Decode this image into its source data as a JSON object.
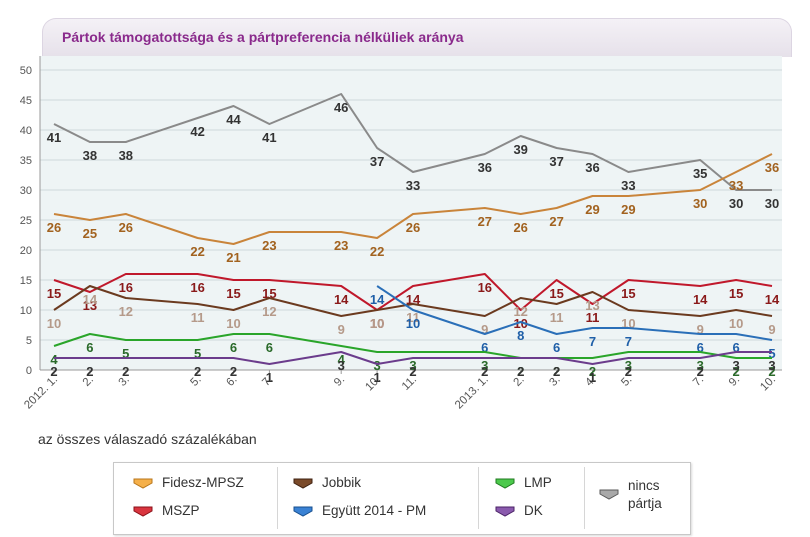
{
  "title": "Pártok támogatottsága és a pártpreferencia nélküliek aránya",
  "note": "az összes válaszadó százalékában",
  "legend": [
    {
      "name": "Fidesz-MPSZ",
      "color": "#f5a623"
    },
    {
      "name": "MSZP",
      "color": "#c8102e"
    },
    {
      "name": "Jobbik",
      "color": "#6b3a1f"
    },
    {
      "name": "Együtt 2014 - PM",
      "color": "#1f6fc2"
    },
    {
      "name": "LMP",
      "color": "#2fb52f"
    },
    {
      "name": "DK",
      "color": "#6b3c8c"
    },
    {
      "name": "nincs pártja",
      "color": "#888888"
    }
  ],
  "chart_data": {
    "type": "line",
    "title": "Pártok támogatottsága és a pártpreferencia nélküliek aránya",
    "ylabel": "az összes válaszadó százalékában",
    "ylim": [
      0,
      50
    ],
    "yticks": [
      0,
      5,
      10,
      15,
      20,
      25,
      30,
      35,
      40,
      45,
      50
    ],
    "x_labels": [
      "2012. 1.",
      "2.",
      "3.",
      "5.",
      "6.",
      "7.",
      "9.",
      "10.",
      "11.",
      "2013. 1.",
      "2.",
      "3.",
      "4.",
      "5.",
      "7.",
      "9.",
      "10."
    ],
    "series": [
      {
        "name": "nincs pártja",
        "color": "#8a8a8a",
        "label_color": "#333333",
        "points": [
          [
            0,
            41
          ],
          [
            1,
            38
          ],
          [
            2,
            38
          ],
          [
            4,
            42
          ],
          [
            5,
            44
          ],
          [
            6,
            41
          ],
          [
            8,
            46
          ],
          [
            9,
            37
          ],
          [
            10,
            33
          ],
          [
            12,
            36
          ],
          [
            13,
            39
          ],
          [
            14,
            37
          ],
          [
            15,
            36
          ],
          [
            16,
            33
          ],
          [
            18,
            35
          ],
          [
            19,
            30
          ],
          [
            20,
            30
          ]
        ]
      },
      {
        "name": "Fidesz-MPSZ",
        "color": "#c9843a",
        "label_color": "#a2621f",
        "points": [
          [
            0,
            26
          ],
          [
            1,
            25
          ],
          [
            2,
            26
          ],
          [
            4,
            22
          ],
          [
            5,
            21
          ],
          [
            6,
            23
          ],
          [
            8,
            23
          ],
          [
            9,
            22
          ],
          [
            10,
            26
          ],
          [
            12,
            27
          ],
          [
            13,
            26
          ],
          [
            14,
            27
          ],
          [
            15,
            29
          ],
          [
            16,
            29
          ],
          [
            18,
            30
          ],
          [
            19,
            33
          ],
          [
            20,
            36
          ]
        ]
      },
      {
        "name": "MSZP",
        "color": "#c0182b",
        "label_color": "#8a1a1a",
        "points": [
          [
            0,
            15
          ],
          [
            1,
            13
          ],
          [
            2,
            16
          ],
          [
            4,
            16
          ],
          [
            5,
            15
          ],
          [
            6,
            15
          ],
          [
            8,
            14
          ],
          [
            9,
            10
          ],
          [
            10,
            14
          ],
          [
            12,
            16
          ],
          [
            13,
            10
          ],
          [
            14,
            15
          ],
          [
            15,
            11
          ],
          [
            16,
            15
          ],
          [
            18,
            14
          ],
          [
            19,
            15
          ],
          [
            20,
            14
          ]
        ]
      },
      {
        "name": "Jobbik",
        "color": "#6b3a1f",
        "label_color": "#b59a8a",
        "points": [
          [
            0,
            10
          ],
          [
            1,
            14
          ],
          [
            2,
            12
          ],
          [
            4,
            11
          ],
          [
            5,
            10
          ],
          [
            6,
            12
          ],
          [
            8,
            9
          ],
          [
            9,
            10
          ],
          [
            10,
            11
          ],
          [
            12,
            9
          ],
          [
            13,
            12
          ],
          [
            14,
            11
          ],
          [
            15,
            13
          ],
          [
            16,
            10
          ],
          [
            18,
            9
          ],
          [
            19,
            10
          ],
          [
            20,
            9
          ]
        ]
      },
      {
        "name": "Együtt 2014 - PM",
        "color": "#2a6fb8",
        "label_color": "#1f5fa8",
        "points": [
          [
            9,
            14
          ],
          [
            10,
            10
          ],
          [
            12,
            6
          ],
          [
            13,
            8
          ],
          [
            14,
            6
          ],
          [
            15,
            7
          ],
          [
            16,
            7
          ],
          [
            18,
            6
          ],
          [
            19,
            6
          ],
          [
            20,
            5
          ]
        ]
      },
      {
        "name": "LMP",
        "color": "#2aa52a",
        "label_color": "#2a6a2a",
        "points": [
          [
            0,
            4
          ],
          [
            1,
            6
          ],
          [
            2,
            5
          ],
          [
            4,
            5
          ],
          [
            5,
            6
          ],
          [
            6,
            6
          ],
          [
            8,
            4
          ],
          [
            9,
            3
          ],
          [
            10,
            3
          ],
          [
            12,
            3
          ],
          [
            13,
            2
          ],
          [
            14,
            2
          ],
          [
            15,
            2
          ],
          [
            16,
            3
          ],
          [
            18,
            3
          ],
          [
            19,
            2
          ],
          [
            20,
            2
          ]
        ]
      },
      {
        "name": "DK",
        "color": "#6b3c8c",
        "label_color": "#333333",
        "points": [
          [
            0,
            2
          ],
          [
            1,
            2
          ],
          [
            2,
            2
          ],
          [
            4,
            2
          ],
          [
            5,
            2
          ],
          [
            6,
            1
          ],
          [
            8,
            3
          ],
          [
            9,
            1
          ],
          [
            10,
            2
          ],
          [
            12,
            2
          ],
          [
            13,
            2
          ],
          [
            14,
            2
          ],
          [
            15,
            1
          ],
          [
            16,
            2
          ],
          [
            18,
            2
          ],
          [
            19,
            3
          ],
          [
            20,
            3
          ]
        ]
      }
    ]
  }
}
